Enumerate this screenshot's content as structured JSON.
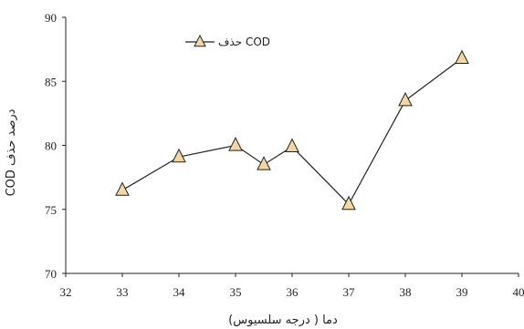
{
  "chart_data": {
    "type": "line",
    "title": "",
    "xlabel": "دما ( درجه سلسیوس)",
    "ylabel": "درصد حذف COD",
    "xlim": [
      32,
      40
    ],
    "ylim": [
      70,
      90
    ],
    "xticks": [
      "32",
      "33",
      "34",
      "35",
      "36",
      "37",
      "38",
      "39",
      "40"
    ],
    "yticks": [
      "70",
      "75",
      "80",
      "85",
      "90"
    ],
    "grid": false,
    "legend_position": "top-left",
    "series": [
      {
        "name": "حذف COD",
        "marker": "triangle",
        "color": "#222222",
        "marker_fill": "#f2d8a0",
        "x": [
          33,
          34,
          35,
          35.5,
          36,
          37,
          38,
          39
        ],
        "y": [
          76.5,
          79.1,
          80.0,
          78.5,
          79.9,
          75.4,
          83.5,
          86.8
        ]
      }
    ]
  }
}
